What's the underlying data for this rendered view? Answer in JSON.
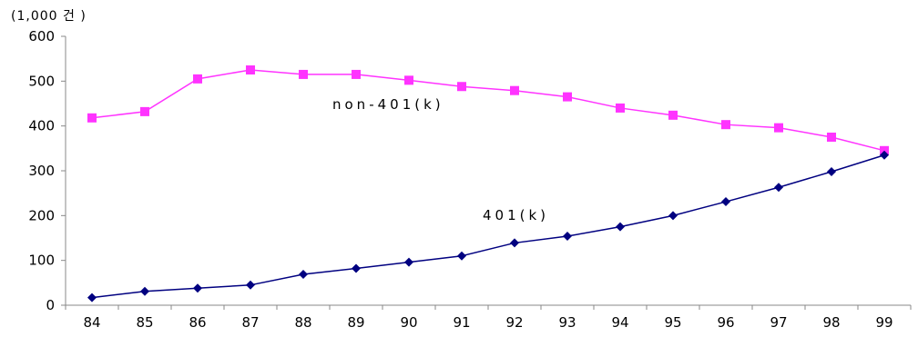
{
  "chart_data": {
    "type": "line",
    "unit_label": "(1,000 건 )",
    "categories": [
      "84",
      "85",
      "86",
      "87",
      "88",
      "89",
      "90",
      "91",
      "92",
      "93",
      "94",
      "95",
      "96",
      "97",
      "98",
      "99"
    ],
    "ylim": [
      0,
      600
    ],
    "yticks": [
      0,
      100,
      200,
      300,
      400,
      500,
      600
    ],
    "grid": false,
    "series": [
      {
        "name": "non-401(k)",
        "color": "#ff33ff",
        "marker": "square",
        "values": [
          418,
          432,
          505,
          525,
          515,
          515,
          502,
          488,
          479,
          465,
          440,
          424,
          403,
          396,
          375,
          345
        ]
      },
      {
        "name": "401(k)",
        "color": "#000080",
        "marker": "diamond",
        "values": [
          17,
          31,
          38,
          45,
          69,
          82,
          96,
          110,
          139,
          154,
          175,
          200,
          231,
          263,
          298,
          335
        ]
      }
    ]
  }
}
